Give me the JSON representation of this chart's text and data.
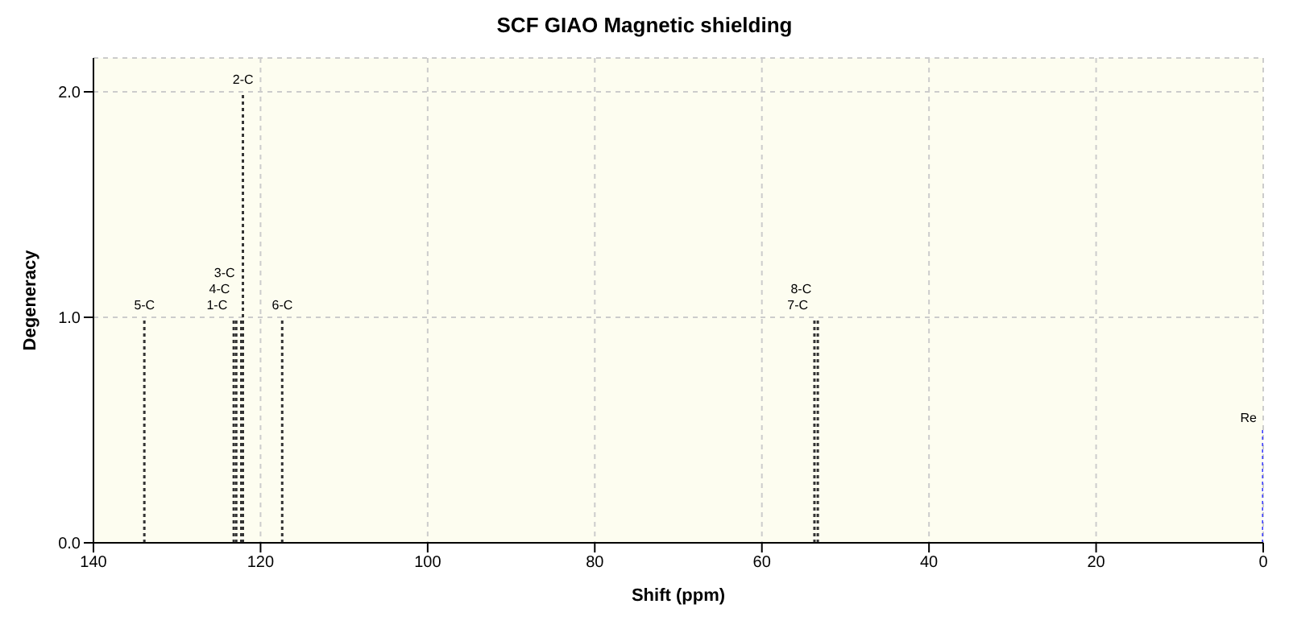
{
  "chart_data": {
    "type": "bar",
    "title": "SCF GIAO Magnetic shielding",
    "xlabel": "Shift (ppm)",
    "ylabel": "Degeneracy",
    "x": [
      133.9,
      123.2,
      122.9,
      122.3,
      122.1,
      117.4,
      53.7,
      53.3,
      0
    ],
    "values": [
      1,
      1,
      1,
      1,
      2,
      1,
      1,
      1,
      0.5
    ],
    "colors": [
      "#333333",
      "#333333",
      "#333333",
      "#333333",
      "#333333",
      "#333333",
      "#333333",
      "#333333",
      "#4040ff"
    ],
    "xlim": [
      140,
      0
    ],
    "xticks": [
      140,
      120,
      100,
      80,
      60,
      40,
      20,
      0
    ],
    "ylim": [
      0,
      2.15
    ],
    "yticks": [
      {
        "value": 0,
        "label": "0.0"
      },
      {
        "value": 1,
        "label": "1.0"
      },
      {
        "value": 2,
        "label": "2.0"
      }
    ],
    "grid": true,
    "line_style": "dotted",
    "annotations": [
      {
        "text": "5-C",
        "x": 133.9,
        "y": 1
      },
      {
        "text": "1-C",
        "x": 123.2,
        "y": 1
      },
      {
        "text": "4-C",
        "x": 122.9,
        "y": 1
      },
      {
        "text": "3-C",
        "x": 122.3,
        "y": 1
      },
      {
        "text": "2-C",
        "x": 122.1,
        "y": 2
      },
      {
        "text": "6-C",
        "x": 117.4,
        "y": 1
      },
      {
        "text": "7-C",
        "x": 53.7,
        "y": 1
      },
      {
        "text": "8-C",
        "x": 53.3,
        "y": 1
      },
      {
        "text": "Re",
        "x": 0,
        "y": 0.5
      }
    ]
  }
}
